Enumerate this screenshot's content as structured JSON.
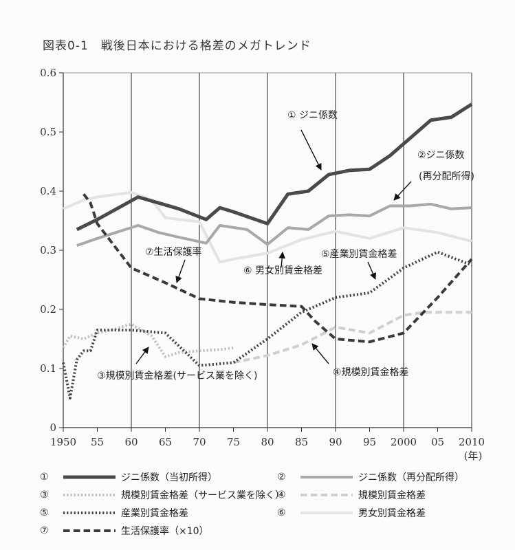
{
  "title": "図表0-1　戦後日本における格差のメガトレンド",
  "chart_data": {
    "type": "line",
    "xlim": [
      1950,
      2010
    ],
    "ylim": [
      0,
      0.6
    ],
    "x_ticks": [
      1950,
      1955,
      1960,
      1965,
      1970,
      1975,
      1980,
      1985,
      1990,
      1995,
      2000,
      2005,
      2010
    ],
    "x_tick_labels": [
      "1950",
      "55",
      "60",
      "65",
      "70",
      "75",
      "80",
      "85",
      "90",
      "95",
      "2000",
      "05",
      "2010"
    ],
    "x_unit": "(年)",
    "y_ticks": [
      0,
      0.1,
      0.2,
      0.3,
      0.4,
      0.5,
      0.6
    ],
    "y_tick_labels": [
      "0",
      "0.1",
      "0.2",
      "0.3",
      "0.4",
      "0.5",
      "0.6"
    ],
    "vertical_gridlines": [
      1960,
      1970,
      1980,
      1990,
      2000
    ],
    "series": [
      {
        "key": "s1",
        "num": "①",
        "name": "ジニ係数（当初所得）",
        "color": "#4a4a4a",
        "dash": "solid",
        "width": 5,
        "x": [
          1952,
          1955,
          1961,
          1964,
          1967,
          1971,
          1973,
          1975,
          1980,
          1983,
          1986,
          1989,
          1992,
          1995,
          1998,
          2001,
          2004,
          2007,
          2010
        ],
        "y": [
          0.335,
          0.352,
          0.39,
          0.38,
          0.37,
          0.352,
          0.372,
          0.365,
          0.345,
          0.395,
          0.4,
          0.428,
          0.435,
          0.437,
          0.46,
          0.49,
          0.52,
          0.525,
          0.547
        ]
      },
      {
        "key": "s2",
        "num": "②",
        "name": "ジニ係数（再分配所得）",
        "color": "#a8a8a8",
        "dash": "solid",
        "width": 4,
        "x": [
          1952,
          1955,
          1961,
          1964,
          1967,
          1971,
          1973,
          1977,
          1980,
          1983,
          1986,
          1989,
          1992,
          1995,
          1998,
          2001,
          2004,
          2007,
          2010
        ],
        "y": [
          0.308,
          0.32,
          0.342,
          0.33,
          0.322,
          0.312,
          0.342,
          0.335,
          0.31,
          0.338,
          0.335,
          0.358,
          0.36,
          0.358,
          0.375,
          0.375,
          0.378,
          0.37,
          0.372
        ]
      },
      {
        "key": "s3",
        "num": "③",
        "name": "規模別賃金格差（サービス業を除く）",
        "color": "#bdbdbd",
        "dash": "dot",
        "width": 4,
        "x": [
          1950,
          1951,
          1953,
          1954,
          1955,
          1957,
          1960,
          1963,
          1965,
          1967,
          1970,
          1973,
          1975
        ],
        "y": [
          0.135,
          0.155,
          0.15,
          0.155,
          0.16,
          0.165,
          0.175,
          0.155,
          0.12,
          0.127,
          0.13,
          0.132,
          0.135
        ]
      },
      {
        "key": "s4",
        "num": "④",
        "name": "規模別賃金格差",
        "color": "#cfcfcf",
        "dash": "dash",
        "width": 4,
        "x": [
          1975,
          1980,
          1985,
          1990,
          1995,
          2000,
          2003,
          2005,
          2010
        ],
        "y": [
          0.11,
          0.122,
          0.14,
          0.17,
          0.16,
          0.19,
          0.195,
          0.195,
          0.195
        ]
      },
      {
        "key": "s5",
        "num": "⑤",
        "name": "産業別賃金格差",
        "color": "#444444",
        "dash": "dot",
        "width": 4,
        "x": [
          1950,
          1951,
          1952,
          1953,
          1954,
          1955,
          1960,
          1965,
          1970,
          1975,
          1980,
          1985,
          1990,
          1995,
          2000,
          2005,
          2010
        ],
        "y": [
          0.11,
          0.05,
          0.115,
          0.13,
          0.13,
          0.165,
          0.165,
          0.16,
          0.105,
          0.11,
          0.15,
          0.195,
          0.22,
          0.228,
          0.27,
          0.297,
          0.275
        ]
      },
      {
        "key": "s6",
        "num": "⑥",
        "name": "男女別賃金格差",
        "color": "#e3e3e3",
        "dash": "solid",
        "width": 4,
        "x": [
          1950,
          1953,
          1955,
          1960,
          1963,
          1965,
          1970,
          1973,
          1975,
          1980,
          1985,
          1990,
          1995,
          2000,
          2005,
          2010
        ],
        "y": [
          0.37,
          0.385,
          0.39,
          0.398,
          0.385,
          0.355,
          0.348,
          0.28,
          0.285,
          0.295,
          0.318,
          0.332,
          0.32,
          0.338,
          0.33,
          0.315
        ]
      },
      {
        "key": "s7",
        "num": "⑦",
        "name": "生活保護率（×10）",
        "color": "#3a3a3a",
        "dash": "dash",
        "width": 4,
        "x": [
          1953,
          1954,
          1955,
          1960,
          1965,
          1970,
          1975,
          1980,
          1985,
          1987,
          1990,
          1995,
          2000,
          2005,
          2010
        ],
        "y": [
          0.395,
          0.38,
          0.345,
          0.27,
          0.245,
          0.218,
          0.212,
          0.208,
          0.205,
          0.18,
          0.15,
          0.145,
          0.16,
          0.22,
          0.285
        ]
      }
    ],
    "annotations": [
      {
        "key": "a1",
        "text": "① ジニ係数"
      },
      {
        "key": "a2a",
        "text": "②ジニ係数"
      },
      {
        "key": "a2b",
        "text": "(再分配所得)"
      },
      {
        "key": "a7",
        "text": "⑦生活保護率"
      },
      {
        "key": "a6",
        "text": "⑥ 男女別賃金格差"
      },
      {
        "key": "a5",
        "text": "⑤産業別賃金格差"
      },
      {
        "key": "a3",
        "text": "③規模別賃金格差(サービス業を除く)"
      },
      {
        "key": "a4",
        "text": "④規模別賃金格差"
      }
    ]
  }
}
